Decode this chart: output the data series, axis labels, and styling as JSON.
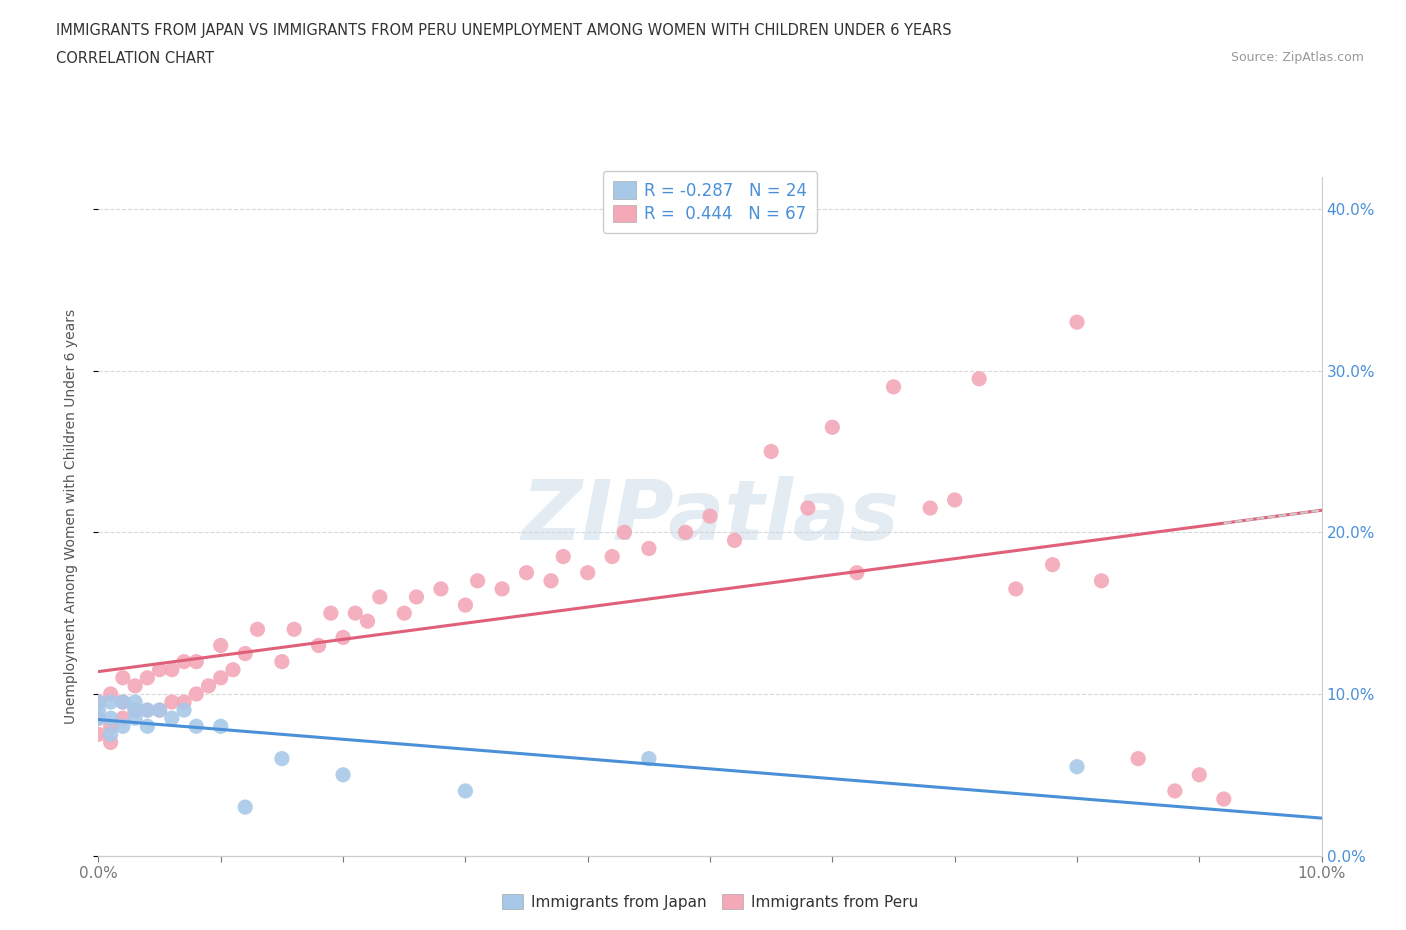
{
  "title_line1": "IMMIGRANTS FROM JAPAN VS IMMIGRANTS FROM PERU UNEMPLOYMENT AMONG WOMEN WITH CHILDREN UNDER 6 YEARS",
  "title_line2": "CORRELATION CHART",
  "source_text": "Source: ZipAtlas.com",
  "ylabel": "Unemployment Among Women with Children Under 6 years",
  "xlim": [
    0.0,
    0.1
  ],
  "ylim": [
    0.0,
    0.42
  ],
  "japan_color": "#a8c8e8",
  "peru_color": "#f4a8b8",
  "japan_line_color": "#4a90d9",
  "peru_line_color": "#e0607a",
  "japan_R": -0.287,
  "japan_N": 24,
  "peru_R": 0.444,
  "peru_N": 67,
  "legend_label_japan": "Immigrants from Japan",
  "legend_label_peru": "Immigrants from Peru",
  "watermark": "ZIPatlas",
  "japan_scatter_x": [
    0.0,
    0.0,
    0.0,
    0.001,
    0.001,
    0.001,
    0.002,
    0.002,
    0.003,
    0.003,
    0.003,
    0.004,
    0.004,
    0.005,
    0.006,
    0.007,
    0.008,
    0.01,
    0.012,
    0.015,
    0.02,
    0.03,
    0.045,
    0.08
  ],
  "japan_scatter_y": [
    0.085,
    0.09,
    0.095,
    0.075,
    0.085,
    0.095,
    0.08,
    0.095,
    0.085,
    0.09,
    0.095,
    0.08,
    0.09,
    0.09,
    0.085,
    0.09,
    0.08,
    0.08,
    0.03,
    0.06,
    0.05,
    0.04,
    0.06,
    0.055
  ],
  "peru_scatter_x": [
    0.0,
    0.0,
    0.0,
    0.001,
    0.001,
    0.001,
    0.002,
    0.002,
    0.002,
    0.003,
    0.003,
    0.004,
    0.004,
    0.005,
    0.005,
    0.006,
    0.006,
    0.007,
    0.007,
    0.008,
    0.008,
    0.009,
    0.01,
    0.01,
    0.011,
    0.012,
    0.013,
    0.015,
    0.016,
    0.018,
    0.019,
    0.02,
    0.021,
    0.022,
    0.023,
    0.025,
    0.026,
    0.028,
    0.03,
    0.031,
    0.033,
    0.035,
    0.037,
    0.038,
    0.04,
    0.042,
    0.043,
    0.045,
    0.048,
    0.05,
    0.052,
    0.055,
    0.058,
    0.06,
    0.062,
    0.065,
    0.068,
    0.07,
    0.072,
    0.075,
    0.078,
    0.08,
    0.082,
    0.085,
    0.088,
    0.09,
    0.092
  ],
  "peru_scatter_y": [
    0.075,
    0.085,
    0.095,
    0.07,
    0.08,
    0.1,
    0.085,
    0.095,
    0.11,
    0.09,
    0.105,
    0.09,
    0.11,
    0.09,
    0.115,
    0.095,
    0.115,
    0.095,
    0.12,
    0.1,
    0.12,
    0.105,
    0.11,
    0.13,
    0.115,
    0.125,
    0.14,
    0.12,
    0.14,
    0.13,
    0.15,
    0.135,
    0.15,
    0.145,
    0.16,
    0.15,
    0.16,
    0.165,
    0.155,
    0.17,
    0.165,
    0.175,
    0.17,
    0.185,
    0.175,
    0.185,
    0.2,
    0.19,
    0.2,
    0.21,
    0.195,
    0.25,
    0.215,
    0.265,
    0.175,
    0.29,
    0.215,
    0.22,
    0.295,
    0.165,
    0.18,
    0.33,
    0.17,
    0.06,
    0.04,
    0.05,
    0.035
  ],
  "background_color": "#ffffff",
  "grid_color": "#d8d8d8"
}
